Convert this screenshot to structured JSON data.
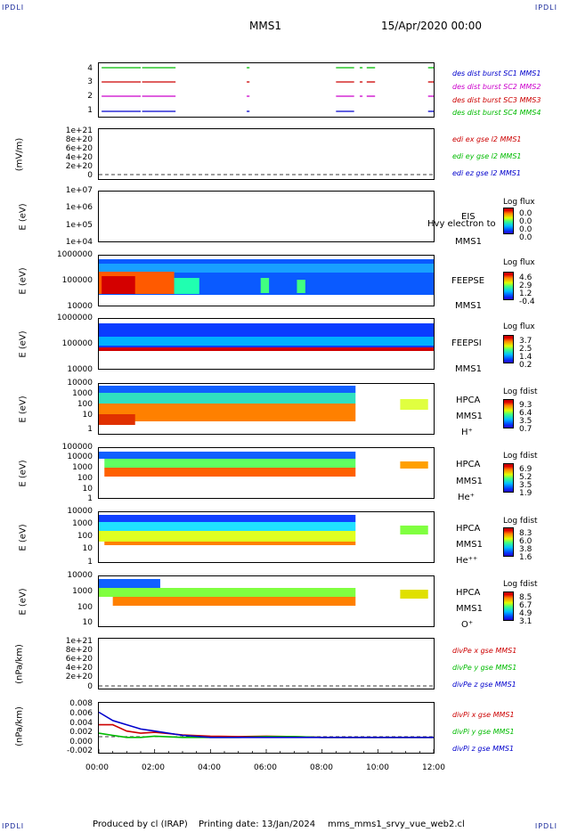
{
  "header": {
    "corner_tl": "IPDLI",
    "corner_tr": "IPDLI",
    "corner_bl": "IPDLI",
    "corner_br": "IPDLI",
    "mission": "MMS1",
    "date": "15/Apr/2020 00:00"
  },
  "footer": {
    "producer": "Produced by cl (IRAP)",
    "printing": "Printing date: 13/Jan/2024",
    "file": "mms_mms1_srvy_vue_web2.cl"
  },
  "colors": {
    "blue": "#0000cc",
    "red": "#cc0000",
    "magenta": "#cc00cc",
    "green": "#00bb00"
  },
  "chart_data": [
    {
      "type": "line",
      "panel": "burst-availability",
      "y_ticks": [
        "4",
        "3",
        "2",
        "1"
      ],
      "ylim": [
        0.5,
        4.5
      ],
      "series": [
        {
          "name": "des dist burst SC1 MMS1",
          "level": 1,
          "intervals": [
            [
              0.1,
              1.5
            ],
            [
              1.55,
              2.75
            ],
            [
              5.3,
              5.4
            ],
            [
              8.5,
              9.15
            ],
            [
              11.8,
              12.0
            ]
          ]
        },
        {
          "name": "des dist burst SC2 MMS2",
          "level": 2,
          "intervals": [
            [
              0.1,
              1.5
            ],
            [
              1.55,
              2.75
            ],
            [
              5.3,
              5.4
            ],
            [
              8.5,
              9.15
            ],
            [
              9.35,
              9.45
            ],
            [
              9.6,
              9.9
            ],
            [
              11.8,
              12.0
            ]
          ]
        },
        {
          "name": "des dist burst SC3 MMS3",
          "level": 3,
          "intervals": [
            [
              0.1,
              1.5
            ],
            [
              1.55,
              2.75
            ],
            [
              5.3,
              5.4
            ],
            [
              8.5,
              9.15
            ],
            [
              9.35,
              9.45
            ],
            [
              9.6,
              9.9
            ],
            [
              11.8,
              12.0
            ]
          ]
        },
        {
          "name": "des dist burst SC4 MMS4",
          "level": 4,
          "intervals": [
            [
              0.1,
              1.5
            ],
            [
              1.55,
              2.75
            ],
            [
              5.3,
              5.4
            ],
            [
              8.5,
              9.15
            ],
            [
              9.35,
              9.45
            ],
            [
              9.6,
              9.9
            ],
            [
              11.8,
              12.0
            ]
          ]
        }
      ],
      "legend": [
        "des dist burst SC1 MMS1",
        "des dist burst SC2 MMS2",
        "des dist burst SC3 MMS3",
        "des dist burst SC4 MMS4"
      ]
    },
    {
      "type": "line",
      "panel": "edi-e-field",
      "ylabel": "(mV/m)",
      "y_ticks": [
        "1e+21",
        "8e+20",
        "6e+20",
        "4e+20",
        "2e+20",
        "0"
      ],
      "ylim": [
        0,
        1e+21
      ],
      "legend": [
        "edi ex gse l2 MMS1",
        "edi ey gse l2 MMS1",
        "edi ez gse l2 MMS1"
      ]
    },
    {
      "type": "heatmap",
      "panel": "eis",
      "ylabel": "E (eV)",
      "y_ticks": [
        "1e+07",
        "1e+06",
        "1e+05",
        "1e+04"
      ],
      "instrument": [
        "EIS",
        "MMS1"
      ],
      "overlay_text": "Hvy electron to",
      "colorbar": {
        "title": "Log flux",
        "ticks": [
          "0.0",
          "0.0",
          "0.0",
          "0.0"
        ]
      }
    },
    {
      "type": "heatmap",
      "panel": "feeps-electron",
      "ylabel": "E (eV)",
      "y_ticks": [
        "1000000",
        "100000",
        "10000"
      ],
      "instrument": [
        "FEEPSE",
        "MMS1"
      ],
      "colorbar": {
        "title": "Log flux",
        "ticks": [
          "4.6",
          "2.9",
          "1.2",
          "-0.4"
        ]
      }
    },
    {
      "type": "heatmap",
      "panel": "feeps-ion",
      "ylabel": "E (eV)",
      "y_ticks": [
        "1000000",
        "100000",
        "10000"
      ],
      "instrument": [
        "FEEPSI",
        "MMS1"
      ],
      "colorbar": {
        "title": "Log flux",
        "ticks": [
          "3.7",
          "2.5",
          "1.4",
          "0.2"
        ]
      }
    },
    {
      "type": "heatmap",
      "panel": "hpca-h",
      "ylabel": "E (eV)",
      "y_ticks": [
        "10000",
        "1000",
        "100",
        "10",
        "1"
      ],
      "instrument": [
        "HPCA",
        "MMS1",
        "H⁺"
      ],
      "colorbar": {
        "title": "Log fdist",
        "ticks": [
          "9.3",
          "6.4",
          "3.5",
          "0.7"
        ]
      }
    },
    {
      "type": "heatmap",
      "panel": "hpca-he",
      "ylabel": "E (eV)",
      "y_ticks": [
        "100000",
        "10000",
        "1000",
        "100",
        "10",
        "1"
      ],
      "instrument": [
        "HPCA",
        "MMS1",
        "He⁺"
      ],
      "colorbar": {
        "title": "Log fdist",
        "ticks": [
          "6.9",
          "5.2",
          "3.5",
          "1.9"
        ]
      }
    },
    {
      "type": "heatmap",
      "panel": "hpca-he2",
      "ylabel": "E (eV)",
      "y_ticks": [
        "10000",
        "1000",
        "100",
        "10",
        "1"
      ],
      "instrument": [
        "HPCA",
        "MMS1",
        "He⁺⁺"
      ],
      "colorbar": {
        "title": "Log fdist",
        "ticks": [
          "8.3",
          "6.0",
          "3.8",
          "1.6"
        ]
      }
    },
    {
      "type": "heatmap",
      "panel": "hpca-o",
      "ylabel": "E (eV)",
      "y_ticks": [
        "10000",
        "1000",
        "100",
        "10"
      ],
      "instrument": [
        "HPCA",
        "MMS1",
        "O⁺"
      ],
      "colorbar": {
        "title": "Log fdist",
        "ticks": [
          "8.5",
          "6.7",
          "4.9",
          "3.1"
        ]
      }
    },
    {
      "type": "line",
      "panel": "divpe",
      "ylabel": "(nPa/km)",
      "y_ticks": [
        "1e+21",
        "8e+20",
        "6e+20",
        "4e+20",
        "2e+20",
        "0"
      ],
      "ylim": [
        0,
        1e+21
      ],
      "legend": [
        "divPe x gse MMS1",
        "divPe y gse MMS1",
        "divPe z gse MMS1"
      ]
    },
    {
      "type": "line",
      "panel": "divpi",
      "ylabel": "(nPa/km)",
      "y_ticks": [
        "0.008",
        "0.006",
        "0.004",
        "0.002",
        "0.000",
        "-0.002"
      ],
      "ylim": [
        -0.003,
        0.008
      ],
      "legend": [
        "divPi x gse MMS1",
        "divPi y gse MMS1",
        "divPi z gse MMS1"
      ],
      "series": [
        {
          "name": "divPi x gse MMS1",
          "x": [
            0.0,
            0.5,
            1.0,
            1.5,
            2.0,
            3.0,
            4.0,
            5.0,
            6.0,
            7.0,
            8.0,
            9.0,
            9.25,
            11.6,
            12.0
          ],
          "y": [
            0.003,
            0.003,
            0.0015,
            0.001,
            0.0012,
            0.0006,
            0.0003,
            0.0002,
            0.0003,
            0.0002,
            0.0,
            0.0,
            0.0,
            0.0,
            0.0
          ]
        },
        {
          "name": "divPi y gse MMS1",
          "x": [
            0.0,
            0.5,
            1.0,
            1.5,
            2.0,
            3.0,
            4.0,
            5.0,
            6.0,
            7.0,
            8.0,
            9.0,
            9.25,
            11.6,
            12.0
          ],
          "y": [
            0.001,
            0.0005,
            0.0,
            0.0,
            0.0003,
            0.0,
            0.0,
            0.0,
            0.0002,
            0.0002,
            0.0,
            0.0,
            0.0,
            0.0,
            0.0
          ]
        },
        {
          "name": "divPi z gse MMS1",
          "x": [
            0.0,
            0.5,
            1.0,
            1.5,
            2.0,
            3.0,
            4.0,
            5.0,
            6.0,
            7.0,
            8.0,
            9.0,
            9.25,
            11.6,
            12.0
          ],
          "y": [
            0.006,
            0.004,
            0.003,
            0.002,
            0.0015,
            0.0005,
            0.0,
            0.0,
            0.0,
            0.0,
            0.0,
            0.0,
            0.0,
            0.0,
            0.0
          ]
        }
      ]
    }
  ],
  "x_axis": {
    "ticks": [
      "00:00",
      "02:00",
      "04:00",
      "06:00",
      "08:00",
      "10:00",
      "12:00"
    ],
    "xlim": [
      0,
      12
    ]
  }
}
